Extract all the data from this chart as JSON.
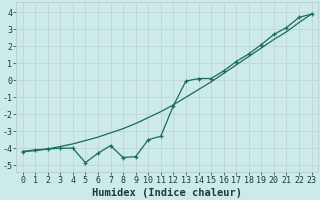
{
  "xlabel": "Humidex (Indice chaleur)",
  "bg_color": "#cceae8",
  "grid_color": "#c0d8d8",
  "line_color": "#1a6b5e",
  "xlim": [
    -0.5,
    23.5
  ],
  "ylim": [
    -5.4,
    4.6
  ],
  "ytick_values": [
    -5,
    -4,
    -3,
    -2,
    -1,
    0,
    1,
    2,
    3,
    4
  ],
  "line1_x": [
    0,
    1,
    2,
    3,
    4,
    5,
    6,
    7,
    8,
    9,
    10,
    11,
    12,
    13,
    14,
    15,
    16,
    17,
    18,
    19,
    20,
    21,
    22,
    23
  ],
  "line1_y": [
    -4.2,
    -4.15,
    -4.05,
    -3.9,
    -3.75,
    -3.55,
    -3.35,
    -3.1,
    -2.85,
    -2.55,
    -2.2,
    -1.85,
    -1.45,
    -1.0,
    -0.55,
    -0.1,
    0.4,
    0.9,
    1.4,
    1.9,
    2.4,
    2.85,
    3.4,
    3.9
  ],
  "line2_x": [
    0,
    1,
    2,
    3,
    4,
    5,
    6,
    7,
    8,
    9,
    10,
    11,
    12,
    13,
    14,
    15,
    16,
    17,
    18,
    19,
    20,
    21,
    22,
    23
  ],
  "line2_y": [
    -4.2,
    -4.1,
    -4.05,
    -4.0,
    -4.0,
    -4.85,
    -4.3,
    -3.85,
    -4.55,
    -4.5,
    -3.5,
    -3.3,
    -1.5,
    -0.05,
    0.1,
    0.1,
    0.55,
    1.1,
    1.55,
    2.1,
    2.7,
    3.1,
    3.7,
    3.9
  ],
  "tick_fontsize": 6,
  "xlabel_fontsize": 7.5
}
